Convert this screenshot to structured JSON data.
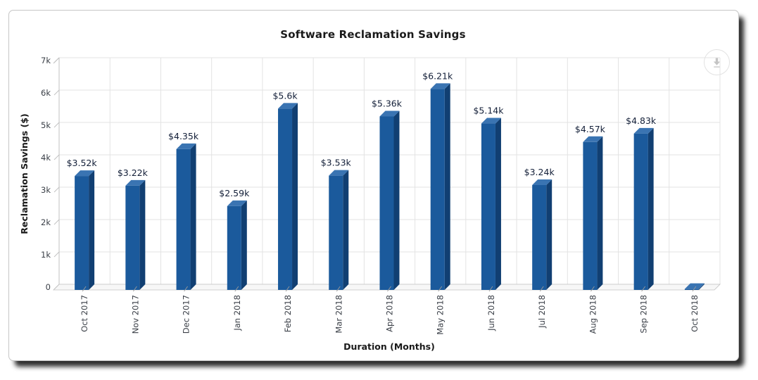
{
  "panel": {
    "title": "Software Reclamation Savings"
  },
  "toolbar": {
    "download_icon": "download-icon"
  },
  "chart_data": {
    "type": "bar",
    "style": "3d-column",
    "title": "Software Reclamation Savings",
    "xlabel": "Duration (Months)",
    "ylabel": "Reclamation Savings ($)",
    "categories": [
      "Oct 2017",
      "Nov 2017",
      "Dec 2017",
      "Jan 2018",
      "Feb 2018",
      "Mar 2018",
      "Apr 2018",
      "May 2018",
      "Jun 2018",
      "Jul 2018",
      "Aug 2018",
      "Sep 2018",
      "Oct 2018"
    ],
    "values": [
      3.52,
      3.22,
      4.35,
      2.59,
      5.6,
      3.53,
      5.36,
      6.21,
      5.14,
      3.24,
      4.57,
      4.83,
      0.03
    ],
    "value_labels": [
      "$3.52k",
      "$3.22k",
      "$4.35k",
      "$2.59k",
      "$5.6k",
      "$3.53k",
      "$5.36k",
      "$6.21k",
      "$5.14k",
      "$3.24k",
      "$4.57k",
      "$4.83k",
      ""
    ],
    "unit": "k",
    "ylim": [
      0,
      7
    ],
    "ytick_labels": [
      "0",
      "1k",
      "2k",
      "3k",
      "4k",
      "5k",
      "6k",
      "7k"
    ],
    "grid": true,
    "legend": "none",
    "colors": {
      "bar_front": "#1b5a9c",
      "bar_side": "#113f72",
      "bar_top": "#3a74b2",
      "grid_line": "#e3e3e3",
      "axis_line": "#c2c2c2",
      "floor_fill": "#f7f7f7",
      "tick_text": "#3a3f47",
      "value_text": "#131f38"
    }
  }
}
